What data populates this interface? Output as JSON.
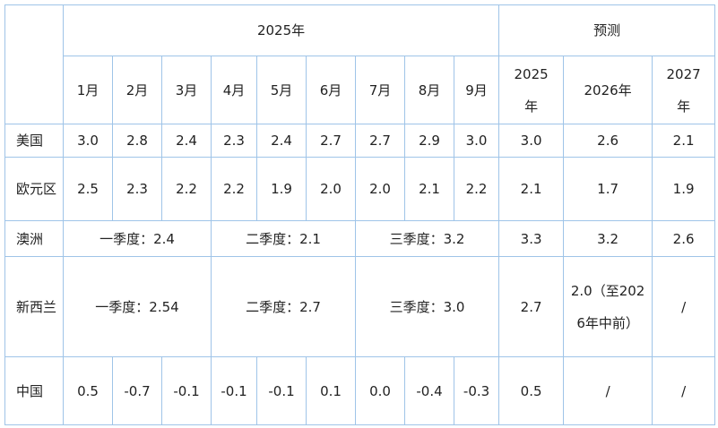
{
  "header": {
    "group_2025": "2025年",
    "group_forecast": "预测",
    "months": [
      "1月",
      "2月",
      "3月",
      "4月",
      "5月",
      "6月",
      "7月",
      "8月",
      "9月"
    ],
    "forecast_years": [
      "2025年",
      "2026年",
      "2027年"
    ]
  },
  "rows": [
    {
      "label": "美国",
      "values": [
        "3.0",
        "2.8",
        "2.4",
        "2.3",
        "2.4",
        "2.7",
        "2.7",
        "2.9",
        "3.0",
        "3.0",
        "2.6",
        "2.1"
      ]
    },
    {
      "label": "欧元区",
      "values": [
        "2.5",
        "2.3",
        "2.2",
        "2.2",
        "1.9",
        "2.0",
        "2.0",
        "2.1",
        "2.2",
        "2.1",
        "1.7",
        "1.9"
      ]
    },
    {
      "label": "澳洲",
      "values": [
        "一季度：2.4",
        "二季度：2.1",
        "三季度：3.2",
        "3.3",
        "3.2",
        "2.6"
      ]
    },
    {
      "label": "新西兰",
      "values": [
        "一季度：2.54",
        "二季度：2.7",
        "三季度：3.0",
        "2.7",
        "2.0（至2026年中前）",
        "/"
      ]
    },
    {
      "label": "中国",
      "values": [
        "0.5",
        "-0.7",
        "-0.1",
        "-0.1",
        "-0.1",
        "0.1",
        "0.0",
        "-0.4",
        "-0.3",
        "0.5",
        "/",
        "/"
      ]
    }
  ]
}
